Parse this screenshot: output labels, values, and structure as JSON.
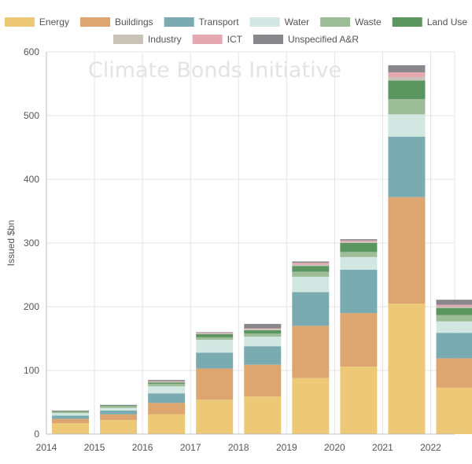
{
  "chart_data": {
    "type": "bar",
    "stacked": true,
    "watermark": "Climate Bonds Initiative",
    "ylabel": "Issued $bn",
    "xlabel": "",
    "ylim": [
      0,
      600
    ],
    "yticks": [
      0,
      100,
      200,
      300,
      400,
      500,
      600
    ],
    "grid": true,
    "legend_position": "top",
    "categories": [
      "2014",
      "2015",
      "2016",
      "2017",
      "2018",
      "2019",
      "2020",
      "2021",
      "2022"
    ],
    "series": [
      {
        "name": "Energy",
        "color": "#ecc877",
        "values": [
          17,
          22,
          31,
          54,
          59,
          88,
          106,
          205,
          73
        ]
      },
      {
        "name": "Buildings",
        "color": "#dda570",
        "values": [
          7,
          9,
          18,
          49,
          50,
          82,
          84,
          167,
          46
        ]
      },
      {
        "name": "Transport",
        "color": "#7aabb1",
        "values": [
          5,
          6,
          15,
          25,
          29,
          53,
          68,
          95,
          40
        ]
      },
      {
        "name": "Water",
        "color": "#d3e7e2",
        "values": [
          4,
          4,
          11,
          20,
          15,
          24,
          20,
          35,
          18
        ]
      },
      {
        "name": "Waste",
        "color": "#9dbc98",
        "values": [
          2,
          3,
          4,
          4,
          5,
          8,
          8,
          24,
          10
        ]
      },
      {
        "name": "Land Use",
        "color": "#5b9660",
        "values": [
          1,
          1,
          2,
          5,
          5,
          9,
          14,
          29,
          11
        ]
      },
      {
        "name": "Industry",
        "color": "#c8c3b7",
        "values": [
          0,
          0,
          1,
          1,
          2,
          2,
          2,
          5,
          2
        ]
      },
      {
        "name": "ICT",
        "color": "#e5a8b1",
        "values": [
          0,
          0,
          1,
          1,
          1,
          3,
          2,
          8,
          3
        ]
      },
      {
        "name": "Unspecified A&R",
        "color": "#88878c",
        "values": [
          1,
          1,
          2,
          1,
          7,
          2,
          2,
          11,
          8
        ]
      }
    ]
  }
}
